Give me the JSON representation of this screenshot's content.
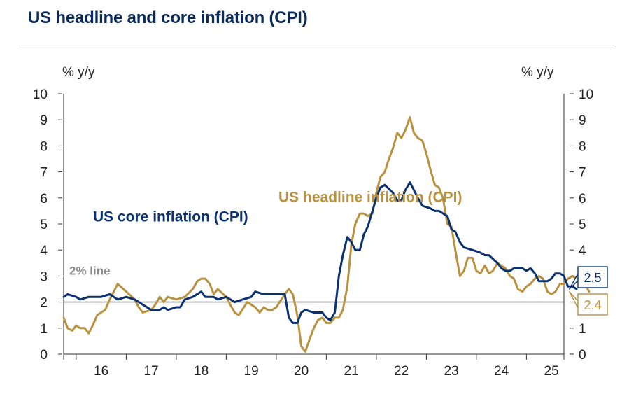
{
  "title": "US headline and core inflation (CPI)",
  "colors": {
    "core": "#0a3272",
    "headline": "#b99240",
    "ref": "#8c8c8c",
    "title": "#0a2a5c"
  },
  "chart_data": {
    "type": "line",
    "title": "US headline and core inflation (CPI)",
    "left_unit": "% y/y",
    "right_unit": "% y/y",
    "ylim": [
      0,
      10
    ],
    "yticks": [
      "0",
      "1",
      "2",
      "3",
      "4",
      "5",
      "6",
      "7",
      "8",
      "9",
      "10"
    ],
    "x_start": 2015.75,
    "x_end": 2025.75,
    "xticks": [
      {
        "label": "16",
        "year": 2016
      },
      {
        "label": "17",
        "year": 2017
      },
      {
        "label": "18",
        "year": 2018
      },
      {
        "label": "19",
        "year": 2019
      },
      {
        "label": "20",
        "year": 2020
      },
      {
        "label": "21",
        "year": 2021
      },
      {
        "label": "22",
        "year": 2022
      },
      {
        "label": "23",
        "year": 2023
      },
      {
        "label": "24",
        "year": 2024
      },
      {
        "label": "25",
        "year": 2025
      }
    ],
    "reference_line": {
      "value": 2,
      "label": "2% line"
    },
    "series": [
      {
        "name": "US core inflation (CPI)",
        "key": "core",
        "last_value_label": "2.5",
        "points": [
          [
            2015.75,
            2.2
          ],
          [
            2015.83,
            2.3
          ],
          [
            2016.0,
            2.2
          ],
          [
            2016.08,
            2.1
          ],
          [
            2016.25,
            2.2
          ],
          [
            2016.5,
            2.2
          ],
          [
            2016.67,
            2.3
          ],
          [
            2016.83,
            2.1
          ],
          [
            2017.0,
            2.2
          ],
          [
            2017.17,
            2.1
          ],
          [
            2017.33,
            1.9
          ],
          [
            2017.5,
            1.7
          ],
          [
            2017.67,
            1.7
          ],
          [
            2017.75,
            1.8
          ],
          [
            2017.83,
            1.7
          ],
          [
            2018.0,
            1.8
          ],
          [
            2018.08,
            1.8
          ],
          [
            2018.17,
            2.1
          ],
          [
            2018.33,
            2.2
          ],
          [
            2018.5,
            2.4
          ],
          [
            2018.58,
            2.2
          ],
          [
            2018.75,
            2.2
          ],
          [
            2018.83,
            2.1
          ],
          [
            2019.0,
            2.2
          ],
          [
            2019.17,
            2.0
          ],
          [
            2019.33,
            2.1
          ],
          [
            2019.5,
            2.2
          ],
          [
            2019.58,
            2.4
          ],
          [
            2019.75,
            2.3
          ],
          [
            2019.92,
            2.3
          ],
          [
            2020.08,
            2.3
          ],
          [
            2020.17,
            2.3
          ],
          [
            2020.25,
            1.4
          ],
          [
            2020.33,
            1.2
          ],
          [
            2020.42,
            1.2
          ],
          [
            2020.5,
            1.6
          ],
          [
            2020.58,
            1.7
          ],
          [
            2020.75,
            1.6
          ],
          [
            2020.92,
            1.6
          ],
          [
            2021.0,
            1.4
          ],
          [
            2021.08,
            1.3
          ],
          [
            2021.17,
            1.6
          ],
          [
            2021.25,
            3.0
          ],
          [
            2021.33,
            3.8
          ],
          [
            2021.42,
            4.5
          ],
          [
            2021.5,
            4.3
          ],
          [
            2021.58,
            4.0
          ],
          [
            2021.67,
            4.0
          ],
          [
            2021.75,
            4.6
          ],
          [
            2021.83,
            4.9
          ],
          [
            2022.0,
            6.0
          ],
          [
            2022.08,
            6.4
          ],
          [
            2022.17,
            6.5
          ],
          [
            2022.33,
            6.2
          ],
          [
            2022.42,
            5.9
          ],
          [
            2022.5,
            5.9
          ],
          [
            2022.58,
            6.3
          ],
          [
            2022.67,
            6.6
          ],
          [
            2022.75,
            6.3
          ],
          [
            2022.83,
            6.0
          ],
          [
            2022.92,
            5.7
          ],
          [
            2023.08,
            5.6
          ],
          [
            2023.17,
            5.5
          ],
          [
            2023.25,
            5.5
          ],
          [
            2023.42,
            5.3
          ],
          [
            2023.5,
            4.8
          ],
          [
            2023.58,
            4.7
          ],
          [
            2023.67,
            4.3
          ],
          [
            2023.75,
            4.1
          ],
          [
            2023.92,
            4.0
          ],
          [
            2024.08,
            3.9
          ],
          [
            2024.17,
            3.8
          ],
          [
            2024.25,
            3.8
          ],
          [
            2024.42,
            3.5
          ],
          [
            2024.5,
            3.3
          ],
          [
            2024.58,
            3.2
          ],
          [
            2024.67,
            3.2
          ],
          [
            2024.75,
            3.3
          ],
          [
            2024.92,
            3.3
          ],
          [
            2025.0,
            3.2
          ],
          [
            2025.08,
            3.3
          ],
          [
            2025.17,
            3.1
          ],
          [
            2025.25,
            2.8
          ],
          [
            2025.42,
            2.8
          ],
          [
            2025.5,
            2.9
          ],
          [
            2025.58,
            3.1
          ],
          [
            2025.67,
            3.1
          ],
          [
            2025.75,
            3.0
          ],
          [
            2025.83,
            2.6
          ],
          [
            2025.92,
            2.6
          ],
          [
            2026.0,
            2.5
          ]
        ]
      },
      {
        "name": "US headline inflation (CPI)",
        "key": "headline",
        "last_value_label": "2.4",
        "points": [
          [
            2015.75,
            1.4
          ],
          [
            2015.83,
            1.0
          ],
          [
            2015.92,
            0.9
          ],
          [
            2016.0,
            1.1
          ],
          [
            2016.08,
            1.0
          ],
          [
            2016.17,
            1.0
          ],
          [
            2016.25,
            0.8
          ],
          [
            2016.33,
            1.1
          ],
          [
            2016.42,
            1.5
          ],
          [
            2016.58,
            1.7
          ],
          [
            2016.67,
            2.1
          ],
          [
            2016.83,
            2.7
          ],
          [
            2017.0,
            2.4
          ],
          [
            2017.17,
            2.1
          ],
          [
            2017.25,
            1.8
          ],
          [
            2017.33,
            1.6
          ],
          [
            2017.5,
            1.7
          ],
          [
            2017.58,
            1.9
          ],
          [
            2017.67,
            2.2
          ],
          [
            2017.75,
            2.0
          ],
          [
            2017.83,
            2.2
          ],
          [
            2018.0,
            2.1
          ],
          [
            2018.17,
            2.2
          ],
          [
            2018.33,
            2.5
          ],
          [
            2018.42,
            2.8
          ],
          [
            2018.5,
            2.9
          ],
          [
            2018.58,
            2.9
          ],
          [
            2018.67,
            2.7
          ],
          [
            2018.75,
            2.3
          ],
          [
            2018.83,
            2.5
          ],
          [
            2019.0,
            2.2
          ],
          [
            2019.08,
            1.9
          ],
          [
            2019.17,
            1.6
          ],
          [
            2019.25,
            1.5
          ],
          [
            2019.42,
            2.0
          ],
          [
            2019.5,
            1.9
          ],
          [
            2019.58,
            1.8
          ],
          [
            2019.67,
            1.6
          ],
          [
            2019.75,
            1.8
          ],
          [
            2019.83,
            1.7
          ],
          [
            2019.92,
            1.7
          ],
          [
            2020.0,
            1.8
          ],
          [
            2020.17,
            2.3
          ],
          [
            2020.25,
            2.5
          ],
          [
            2020.33,
            2.3
          ],
          [
            2020.42,
            1.5
          ],
          [
            2020.5,
            0.3
          ],
          [
            2020.58,
            0.1
          ],
          [
            2020.67,
            0.6
          ],
          [
            2020.75,
            1.0
          ],
          [
            2020.83,
            1.3
          ],
          [
            2020.92,
            1.4
          ],
          [
            2021.0,
            1.2
          ],
          [
            2021.08,
            1.2
          ],
          [
            2021.17,
            1.4
          ],
          [
            2021.25,
            1.4
          ],
          [
            2021.33,
            1.7
          ],
          [
            2021.42,
            2.6
          ],
          [
            2021.5,
            4.2
          ],
          [
            2021.58,
            5.0
          ],
          [
            2021.67,
            5.4
          ],
          [
            2021.75,
            5.4
          ],
          [
            2021.83,
            5.3
          ],
          [
            2021.92,
            5.4
          ],
          [
            2022.0,
            6.2
          ],
          [
            2022.08,
            6.8
          ],
          [
            2022.17,
            7.0
          ],
          [
            2022.25,
            7.5
          ],
          [
            2022.33,
            7.9
          ],
          [
            2022.42,
            8.5
          ],
          [
            2022.5,
            8.3
          ],
          [
            2022.58,
            8.6
          ],
          [
            2022.67,
            9.1
          ],
          [
            2022.75,
            8.5
          ],
          [
            2022.83,
            8.3
          ],
          [
            2022.92,
            8.2
          ],
          [
            2023.0,
            7.7
          ],
          [
            2023.08,
            7.1
          ],
          [
            2023.17,
            6.5
          ],
          [
            2023.25,
            6.4
          ],
          [
            2023.33,
            6.0
          ],
          [
            2023.42,
            5.0
          ],
          [
            2023.5,
            4.9
          ],
          [
            2023.58,
            4.0
          ],
          [
            2023.67,
            3.0
          ],
          [
            2023.75,
            3.2
          ],
          [
            2023.83,
            3.7
          ],
          [
            2023.92,
            3.7
          ],
          [
            2024.0,
            3.2
          ],
          [
            2024.08,
            3.1
          ],
          [
            2024.17,
            3.4
          ],
          [
            2024.25,
            3.1
          ],
          [
            2024.33,
            3.2
          ],
          [
            2024.42,
            3.5
          ],
          [
            2024.58,
            3.3
          ],
          [
            2024.67,
            3.0
          ],
          [
            2024.75,
            2.9
          ],
          [
            2024.83,
            2.5
          ],
          [
            2024.92,
            2.4
          ],
          [
            2025.0,
            2.6
          ],
          [
            2025.08,
            2.7
          ],
          [
            2025.17,
            2.9
          ],
          [
            2025.25,
            3.0
          ],
          [
            2025.33,
            2.9
          ],
          [
            2025.42,
            2.4
          ],
          [
            2025.5,
            2.3
          ],
          [
            2025.58,
            2.4
          ],
          [
            2025.67,
            2.7
          ],
          [
            2025.75,
            2.7
          ],
          [
            2025.83,
            2.9
          ],
          [
            2025.92,
            3.0
          ],
          [
            2026.0,
            2.9
          ],
          [
            2026.08,
            2.7
          ],
          [
            2026.17,
            2.7
          ],
          [
            2026.25,
            2.4
          ]
        ]
      }
    ],
    "annotations": [
      {
        "text": "US core inflation (CPI)",
        "series": "core"
      },
      {
        "text": "US headline inflation (CPI)",
        "series": "headline"
      },
      {
        "text": "2% line",
        "series": "ref"
      }
    ]
  }
}
